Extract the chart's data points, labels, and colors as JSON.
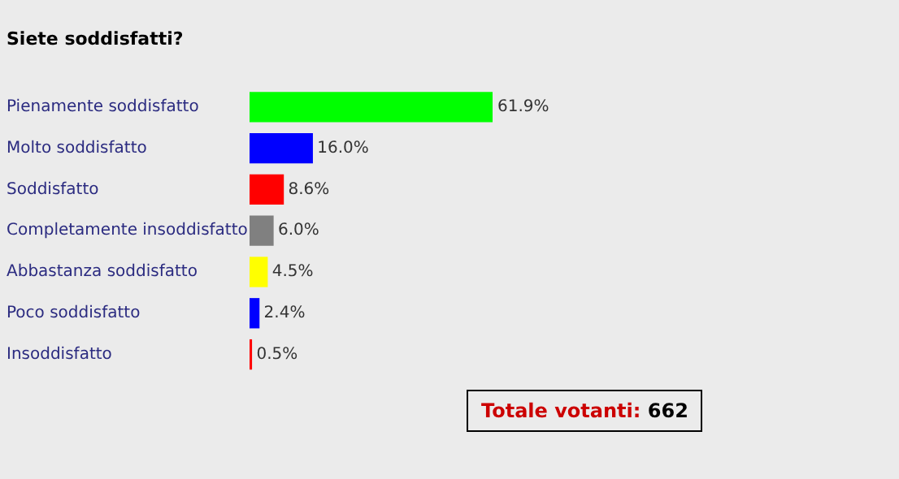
{
  "chart_data": {
    "type": "bar",
    "orientation": "horizontal",
    "title": "Siete soddisfatti?",
    "categories": [
      "Pienamente soddisfatto",
      "Molto soddisfatto",
      "Soddisfatto",
      "Completamente insoddisfatto",
      "Abbastanza soddisfatto",
      "Poco soddisfatto",
      "Insoddisfatto"
    ],
    "values": [
      61.9,
      16.0,
      8.6,
      6.0,
      4.5,
      2.4,
      0.5
    ],
    "colors": [
      "#00ff00",
      "#0000ff",
      "#ff0000",
      "#808080",
      "#ffff00",
      "#0000ff",
      "#ff0000"
    ],
    "value_labels": [
      "61.9%",
      "16.0%",
      "8.6%",
      "6.0%",
      "4.5%",
      "2.4%",
      "0.5%"
    ],
    "annotations": [
      "Totale votanti: 662"
    ],
    "grid": false,
    "legend": false
  }
}
